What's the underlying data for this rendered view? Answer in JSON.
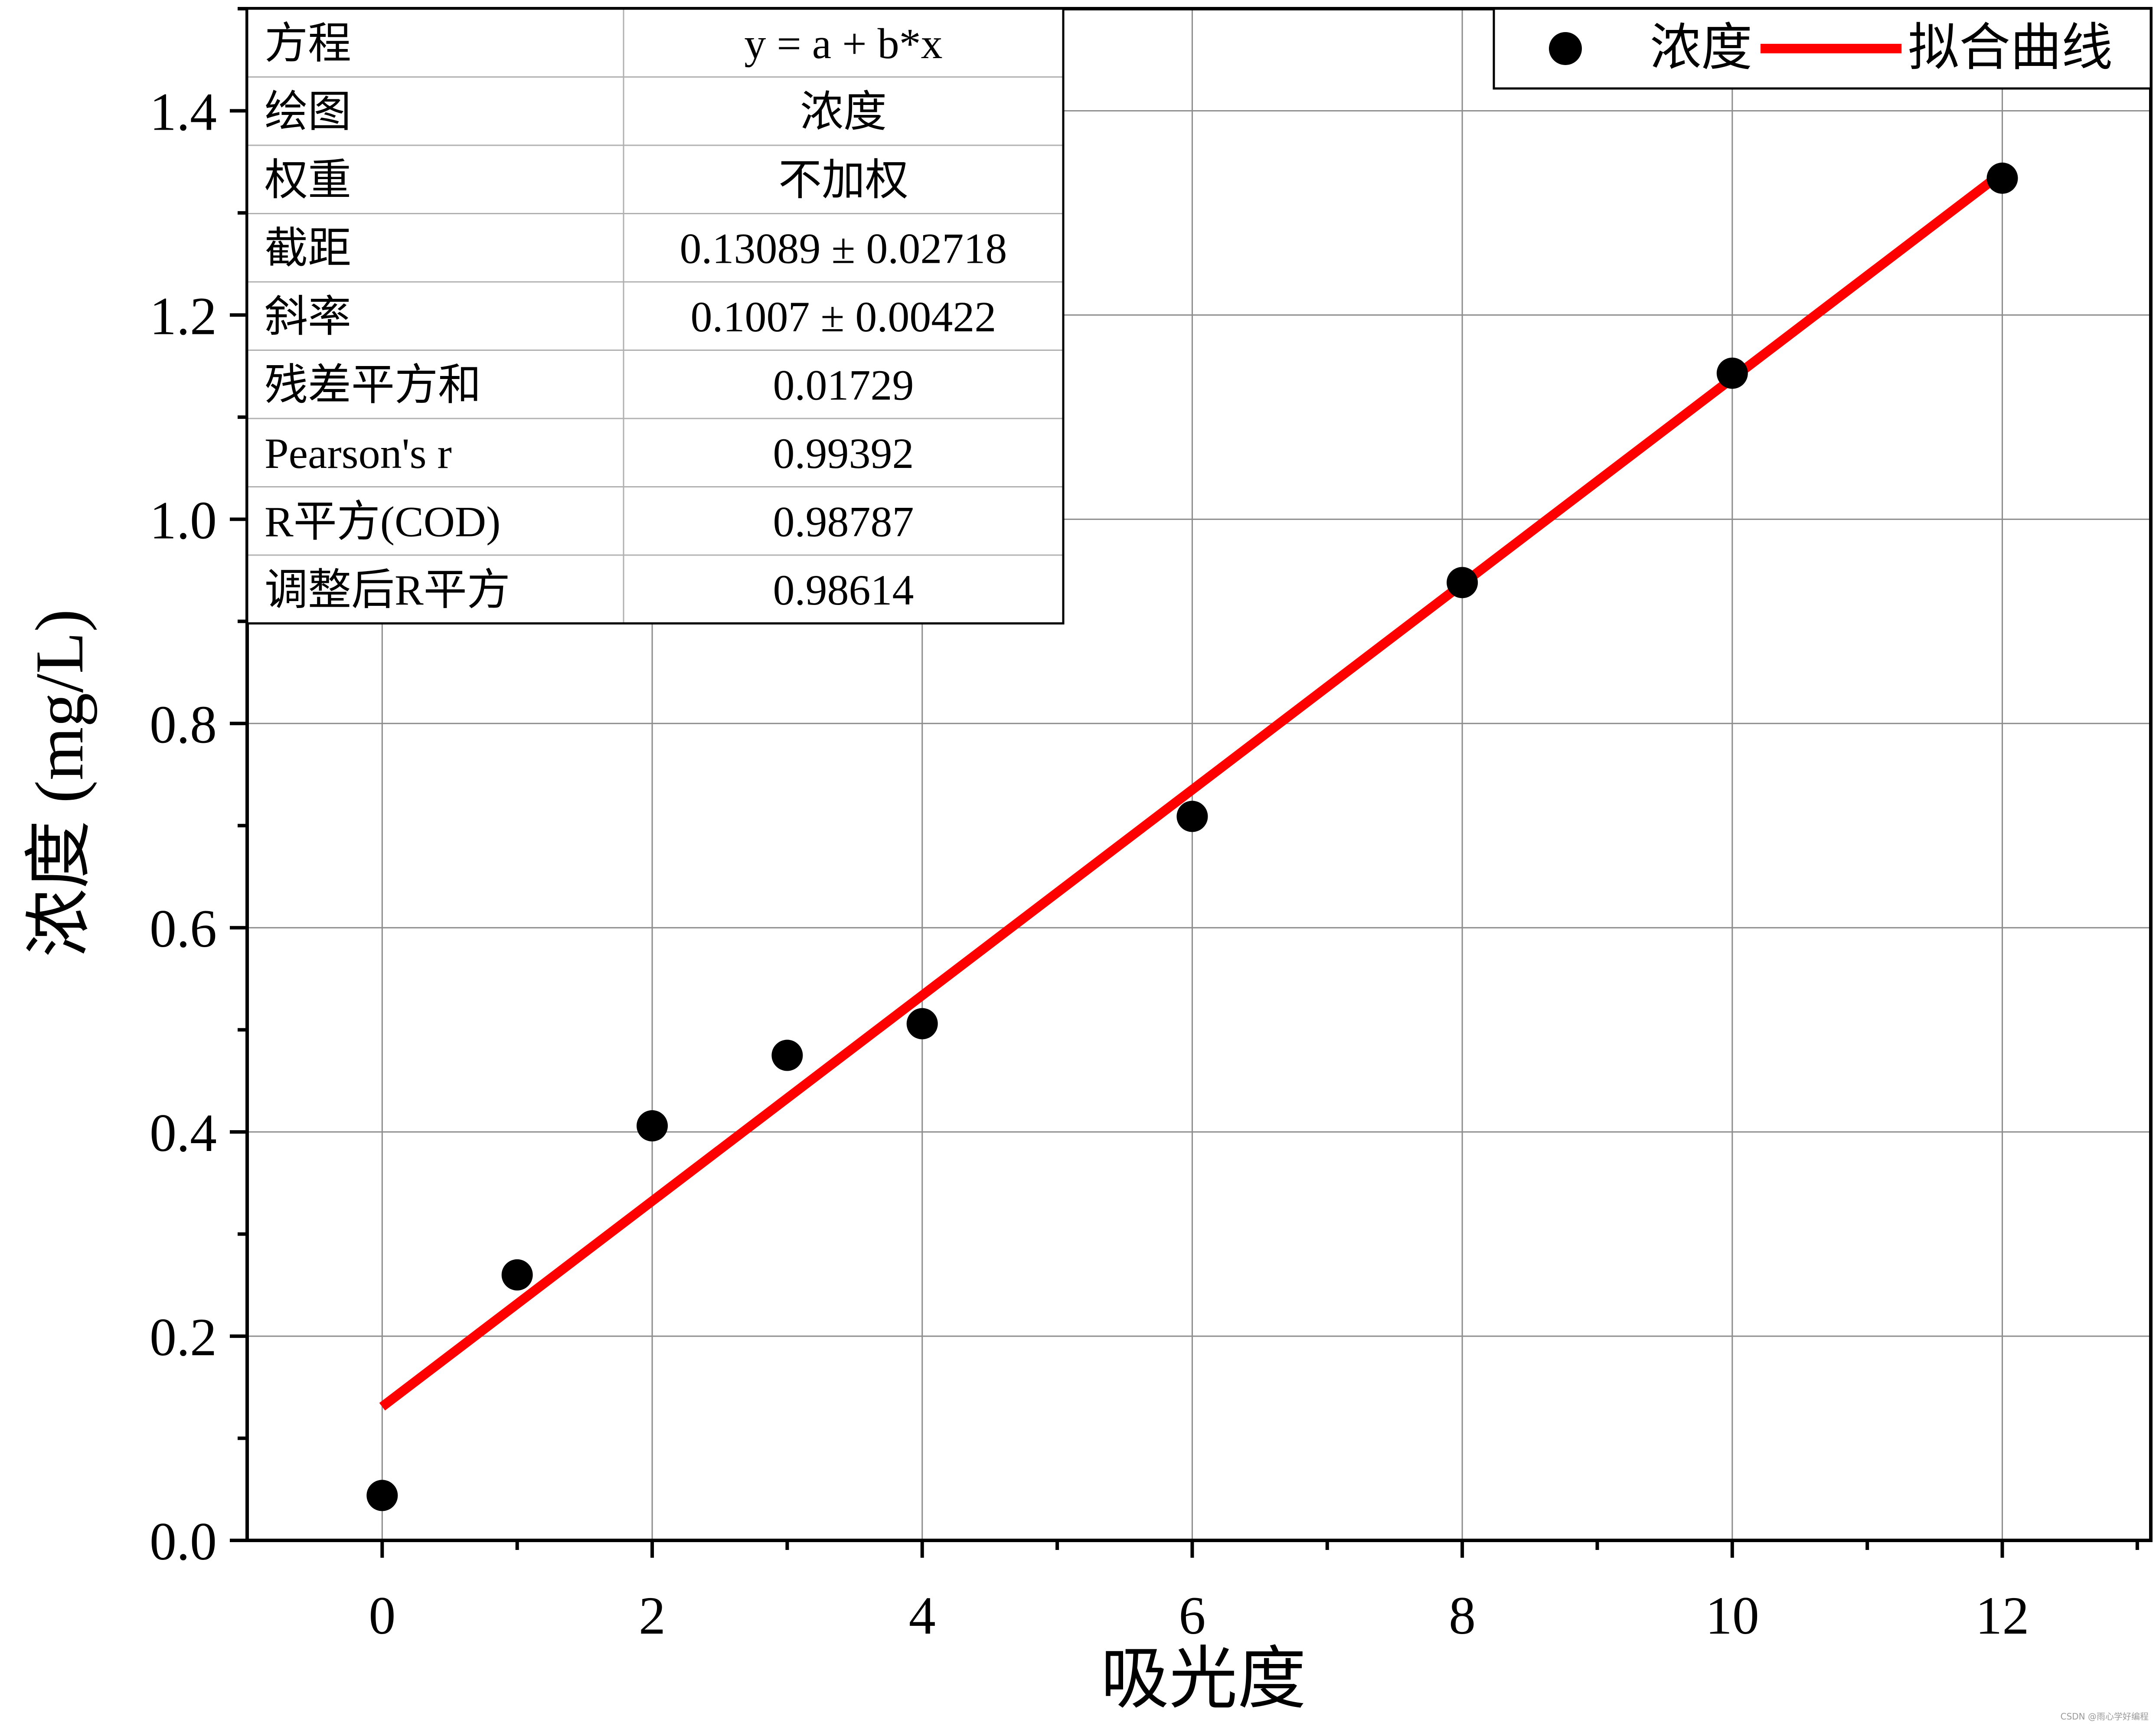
{
  "chart_data": {
    "type": "scatter",
    "xlabel": "吸光度",
    "ylabel": "浓度 (mg/L)",
    "xlim": [
      -1,
      13.1
    ],
    "ylim": [
      0,
      1.5
    ],
    "x_ticks": [
      0,
      2,
      4,
      6,
      8,
      10,
      12
    ],
    "x_tick_labels": [
      "0",
      "2",
      "4",
      "6",
      "8",
      "10",
      "12"
    ],
    "y_ticks": [
      0.0,
      0.2,
      0.4,
      0.6,
      0.8,
      1.0,
      1.2,
      1.4
    ],
    "y_tick_labels": [
      "0.0",
      "0.2",
      "0.4",
      "0.6",
      "0.8",
      "1.0",
      "1.2",
      "1.4"
    ],
    "grid": true,
    "series": [
      {
        "name": "浓度",
        "kind": "scatter",
        "color": "#000000",
        "x": [
          0,
          1,
          2,
          3,
          4,
          6,
          8,
          10,
          12
        ],
        "y": [
          0.044,
          0.26,
          0.406,
          0.475,
          0.506,
          0.709,
          0.938,
          1.143,
          1.334
        ]
      },
      {
        "name": "拟合曲线",
        "kind": "line",
        "color": "#ff0000",
        "x": [
          0,
          12
        ],
        "y": [
          0.13089,
          1.33929
        ]
      }
    ],
    "legend": {
      "position": "top-right",
      "entries": [
        "浓度",
        "拟合曲线"
      ]
    },
    "fit_table": {
      "position": "top-left",
      "rows": [
        {
          "label": "方程",
          "value": "y = a + b*x"
        },
        {
          "label": "绘图",
          "value": "浓度"
        },
        {
          "label": "权重",
          "value": "不加权"
        },
        {
          "label": "截距",
          "value": "0.13089 ± 0.02718"
        },
        {
          "label": "斜率",
          "value": "0.1007 ± 0.00422"
        },
        {
          "label": "残差平方和",
          "value": "0.01729"
        },
        {
          "label": "Pearson's r",
          "value": "0.99392"
        },
        {
          "label": "R平方(COD)",
          "value": "0.98787"
        },
        {
          "label": "调整后R平方",
          "value": "0.98614"
        }
      ]
    }
  },
  "watermark": "CSDN @雨心学好编程"
}
